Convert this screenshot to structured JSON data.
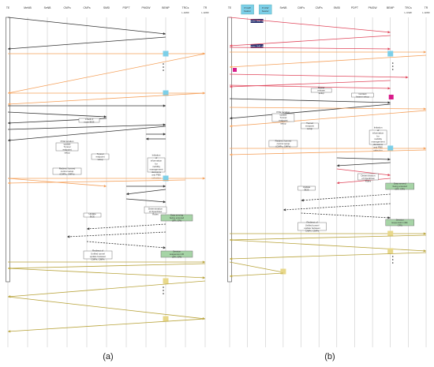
{
  "panels": [
    {
      "caption": "(a)",
      "entities": [
        "TE",
        "MeNB",
        "SeNB",
        "CMFs",
        "CMFs",
        "SMSI",
        "PDPT",
        "PMGW",
        "BEMP",
        "TRCs",
        "TR"
      ],
      "entity_subtitles": {
        "9": "L-GWF",
        "10": "L-GWF"
      },
      "notes": [
        "PCE location update Tunnel endpoint setup",
        "Tunnel endpoint setup",
        "Redirect formed control setup (CMFs, CMFs)",
        "Initiation of information for mobility management decisions and PBS selection",
        "Session request (ID, Location, AP)",
        "Session response (ID, UE, CMFs, Location)",
        "Determination of OpenFlow Rules",
        "Update BCE",
        "OpenFlow Rules setup",
        "OpenFlow Rules setup",
        "Redirect of Unified tunnel update between CMFs, CMFs",
        "Data serving being ensured (SR, CRI)",
        "Session suspension ID (SR, CRI)"
      ]
    },
    {
      "caption": "(b)",
      "entities": [
        "TE",
        "P-GW bearer",
        "P-GW bearer",
        "SeNB",
        "CMFs",
        "CMFs",
        "SMSI",
        "PDPT",
        "PMGW",
        "BEMP",
        "TRCs",
        "TR"
      ],
      "entity_subtitles": {
        "10": "L-GWF",
        "11": "L-GWF"
      },
      "notes": [
        "Context SMB data",
        "Context SMB data",
        "Bearer release setup",
        "Context bearer setup",
        "PCE location update Tunnel endpoint setup",
        "Tunnel endpoint setup",
        "Redirect formed control setup (CMFs, CMFs)",
        "Initiation of information for mobility management decisions and PBS selection",
        "Determination of OpenFlow Rules",
        "Update BCE",
        "OpenFlow Rules setup",
        "OpenFlow Rules setup",
        "Redirect of Unified tunnel update between CMFs, CMFs",
        "Data served being ensured (SR, CRI)",
        "Session suspension (SR, CRI)"
      ]
    }
  ],
  "colors": {
    "lifeline": "#bfbfbf",
    "black_msg": "#333333",
    "orange_msg": "#f5a05a",
    "olive_msg": "#b8a33a",
    "red_msg": "#e0455a",
    "cyan_box": "#7ccfe8",
    "green_box": "#a6d4a6",
    "navy_box": "#1f2a6b",
    "magenta_box": "#d81b8a",
    "yellow_box": "#e8d88a",
    "activation_bar": "#ffffff"
  }
}
